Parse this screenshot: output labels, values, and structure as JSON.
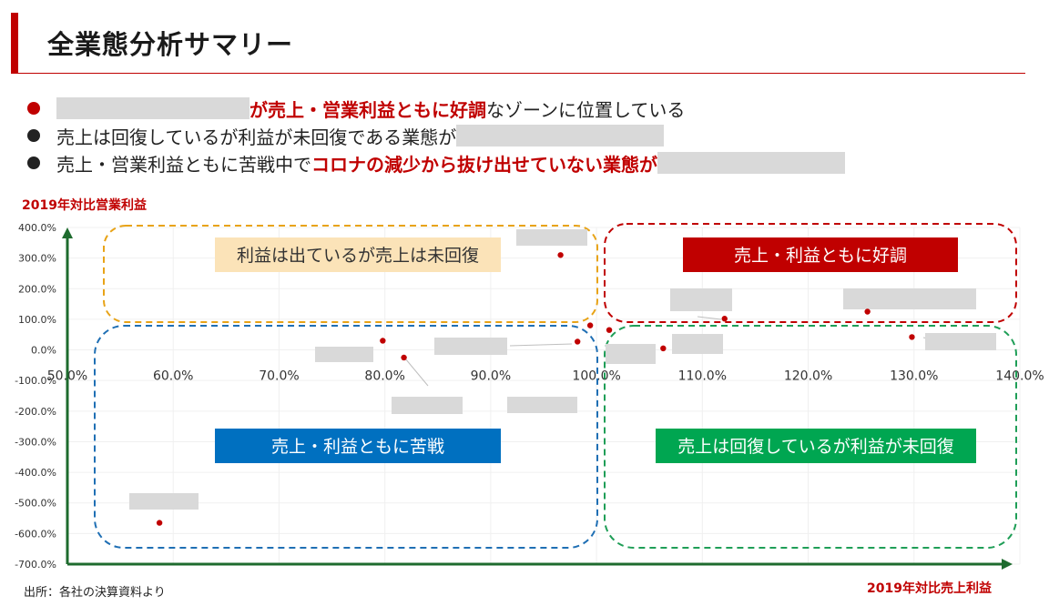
{
  "title": "全業態分析サマリー",
  "bullets": [
    {
      "parts": [
        {
          "text": "が売上・営業利益ともに好調",
          "style": "red"
        },
        {
          "text": "なゾーンに位置している",
          "style": "normal"
        }
      ],
      "color": "#c00000"
    },
    {
      "parts": [
        {
          "text": "売上は回復しているが利益が未回復である業態が",
          "style": "normal"
        }
      ],
      "color": "#222222"
    },
    {
      "parts": [
        {
          "text": "売上・営業利益ともに苦戦中で",
          "style": "normal"
        },
        {
          "text": "コロナの減少から抜け出せていない業態が",
          "style": "red"
        }
      ],
      "color": "#222222"
    }
  ],
  "y_axis_title": "2019年対比営業利益",
  "x_axis_title": "2019年対比売上利益",
  "source": "出所：各社の決算資料より",
  "zones": [
    {
      "label": "利益は出ているが売上は未回復",
      "border": "#e8a317",
      "label_bg": "#fbe3b8",
      "label_color": "#333333"
    },
    {
      "label": "売上・利益ともに好調",
      "border": "#c00000",
      "label_bg": "#c00000",
      "label_color": "#ffffff"
    },
    {
      "label": "売上・利益ともに苦戦",
      "border": "#1f6fb4",
      "label_bg": "#0070c0",
      "label_color": "#ffffff"
    },
    {
      "label": "売上は回復しているが利益が未回復",
      "border": "#1f9e57",
      "label_bg": "#00a651",
      "label_color": "#ffffff"
    }
  ],
  "chart_data": {
    "type": "scatter",
    "xlabel": "2019年対比売上利益",
    "ylabel": "2019年対比営業利益",
    "xlim": [
      50,
      140
    ],
    "ylim": [
      -700,
      400
    ],
    "x_ticks": [
      "50.0%",
      "60.0%",
      "70.0%",
      "80.0%",
      "90.0%",
      "100.0%",
      "110.0%",
      "120.0%",
      "130.0%",
      "140.0%"
    ],
    "y_ticks": [
      "400.0%",
      "300.0%",
      "200.0%",
      "100.0%",
      "0.0%",
      "-100.0%",
      "-200.0%",
      "-300.0%",
      "-400.0%",
      "-500.0%",
      "-600.0%",
      "-700.0%"
    ],
    "points": [
      {
        "x": 96.6,
        "y": 310
      },
      {
        "x": 99.4,
        "y": 80
      },
      {
        "x": 101.2,
        "y": 65
      },
      {
        "x": 98.2,
        "y": 27
      },
      {
        "x": 79.8,
        "y": 30
      },
      {
        "x": 81.8,
        "y": -25
      },
      {
        "x": 106.3,
        "y": 5
      },
      {
        "x": 112.1,
        "y": 102
      },
      {
        "x": 125.6,
        "y": 125
      },
      {
        "x": 129.8,
        "y": 42
      },
      {
        "x": 58.7,
        "y": -565
      }
    ],
    "marker_color": "#c00000"
  }
}
